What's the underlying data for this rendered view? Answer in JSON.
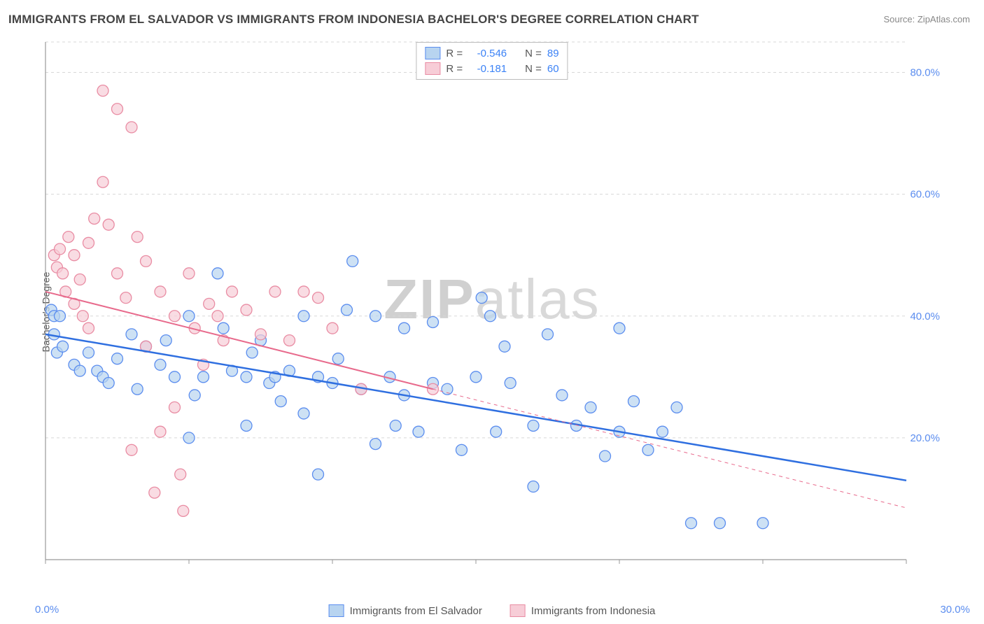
{
  "title": "IMMIGRANTS FROM EL SALVADOR VS IMMIGRANTS FROM INDONESIA BACHELOR'S DEGREE CORRELATION CHART",
  "source": "Source: ZipAtlas.com",
  "ylabel": "Bachelor's Degree",
  "watermark_a": "ZIP",
  "watermark_b": "atlas",
  "chart": {
    "type": "scatter",
    "xlim": [
      0,
      30
    ],
    "ylim": [
      0,
      85
    ],
    "xtick_labels": [
      "0.0%",
      "30.0%"
    ],
    "ytick_values": [
      20,
      40,
      60,
      80
    ],
    "ytick_labels": [
      "20.0%",
      "40.0%",
      "60.0%",
      "80.0%"
    ],
    "background": "#ffffff",
    "grid_color": "#d8d8d8",
    "plot_border_color": "#999999",
    "series": [
      {
        "name": "Immigrants from El Salvador",
        "color_fill": "#b8d4f0",
        "color_stroke": "#5b8def",
        "marker_radius": 8,
        "trend": {
          "x1": 0,
          "y1": 37,
          "x2": 30,
          "y2": 13,
          "solid_until_x": 30,
          "color": "#2f6fe0",
          "width": 2.5
        },
        "R": "-0.546",
        "N": "89",
        "points": [
          [
            0.2,
            41
          ],
          [
            0.3,
            40
          ],
          [
            0.5,
            40
          ],
          [
            0.3,
            37
          ],
          [
            0.4,
            34
          ],
          [
            0.6,
            35
          ],
          [
            1.0,
            32
          ],
          [
            1.2,
            31
          ],
          [
            1.5,
            34
          ],
          [
            1.8,
            31
          ],
          [
            2.0,
            30
          ],
          [
            2.2,
            29
          ],
          [
            2.5,
            33
          ],
          [
            3.0,
            37
          ],
          [
            3.2,
            28
          ],
          [
            3.5,
            35
          ],
          [
            4.0,
            32
          ],
          [
            4.2,
            36
          ],
          [
            4.5,
            30
          ],
          [
            5.0,
            40
          ],
          [
            5.0,
            20
          ],
          [
            5.2,
            27
          ],
          [
            5.5,
            30
          ],
          [
            6.0,
            47
          ],
          [
            6.2,
            38
          ],
          [
            6.5,
            31
          ],
          [
            7.0,
            30
          ],
          [
            7.0,
            22
          ],
          [
            7.2,
            34
          ],
          [
            7.5,
            36
          ],
          [
            7.8,
            29
          ],
          [
            8.0,
            30
          ],
          [
            8.2,
            26
          ],
          [
            8.5,
            31
          ],
          [
            9.0,
            40
          ],
          [
            9.0,
            24
          ],
          [
            9.5,
            30
          ],
          [
            9.5,
            14
          ],
          [
            10.0,
            29
          ],
          [
            10.2,
            33
          ],
          [
            10.5,
            41
          ],
          [
            10.7,
            49
          ],
          [
            11.0,
            28
          ],
          [
            11.5,
            19
          ],
          [
            11.5,
            40
          ],
          [
            12.0,
            30
          ],
          [
            12.2,
            22
          ],
          [
            12.5,
            27
          ],
          [
            12.5,
            38
          ],
          [
            13.0,
            21
          ],
          [
            13.5,
            29
          ],
          [
            13.5,
            39
          ],
          [
            14.0,
            28
          ],
          [
            14.5,
            18
          ],
          [
            15.0,
            30
          ],
          [
            15.2,
            43
          ],
          [
            15.5,
            40
          ],
          [
            15.7,
            21
          ],
          [
            16.0,
            35
          ],
          [
            16.2,
            29
          ],
          [
            17.0,
            22
          ],
          [
            17.0,
            12
          ],
          [
            17.5,
            37
          ],
          [
            18.0,
            27
          ],
          [
            18.5,
            22
          ],
          [
            19.0,
            25
          ],
          [
            19.5,
            17
          ],
          [
            20.0,
            38
          ],
          [
            20.0,
            21
          ],
          [
            20.5,
            26
          ],
          [
            21.0,
            18
          ],
          [
            21.5,
            21
          ],
          [
            22.0,
            25
          ],
          [
            22.5,
            6
          ],
          [
            23.5,
            6
          ],
          [
            25.0,
            6
          ]
        ]
      },
      {
        "name": "Immigrants from Indonesia",
        "color_fill": "#f7cdd7",
        "color_stroke": "#e98ca3",
        "marker_radius": 8,
        "trend": {
          "x1": 0,
          "y1": 44,
          "x2": 13.5,
          "y2": 28,
          "dash_to_x": 30,
          "dash_to_y": 8.5,
          "color": "#e86a8c",
          "width": 2
        },
        "R": "-0.181",
        "N": "60",
        "points": [
          [
            0.3,
            50
          ],
          [
            0.4,
            48
          ],
          [
            0.5,
            51
          ],
          [
            0.6,
            47
          ],
          [
            0.7,
            44
          ],
          [
            0.8,
            53
          ],
          [
            1.0,
            50
          ],
          [
            1.0,
            42
          ],
          [
            1.2,
            46
          ],
          [
            1.3,
            40
          ],
          [
            1.5,
            38
          ],
          [
            1.5,
            52
          ],
          [
            1.7,
            56
          ],
          [
            2.0,
            77
          ],
          [
            2.0,
            62
          ],
          [
            2.2,
            55
          ],
          [
            2.5,
            47
          ],
          [
            2.5,
            74
          ],
          [
            2.8,
            43
          ],
          [
            3.0,
            71
          ],
          [
            3.0,
            18
          ],
          [
            3.2,
            53
          ],
          [
            3.5,
            49
          ],
          [
            3.5,
            35
          ],
          [
            3.8,
            11
          ],
          [
            4.0,
            44
          ],
          [
            4.0,
            21
          ],
          [
            4.5,
            40
          ],
          [
            4.5,
            25
          ],
          [
            4.7,
            14
          ],
          [
            4.8,
            8
          ],
          [
            5.0,
            47
          ],
          [
            5.2,
            38
          ],
          [
            5.5,
            32
          ],
          [
            5.7,
            42
          ],
          [
            6.0,
            40
          ],
          [
            6.2,
            36
          ],
          [
            6.5,
            44
          ],
          [
            7.0,
            41
          ],
          [
            7.5,
            37
          ],
          [
            8.0,
            44
          ],
          [
            8.5,
            36
          ],
          [
            9.0,
            44
          ],
          [
            9.5,
            43
          ],
          [
            10.0,
            38
          ],
          [
            11.0,
            28
          ],
          [
            13.5,
            28
          ]
        ]
      }
    ]
  },
  "legend_top": {
    "row1": {
      "swatch_fill": "#b8d4f0",
      "swatch_border": "#5b8def",
      "R_label": "R =",
      "R": "-0.546",
      "N_label": "N =",
      "N": "89"
    },
    "row2": {
      "swatch_fill": "#f7cdd7",
      "swatch_border": "#e98ca3",
      "R_label": "R =",
      "R": "-0.181",
      "N_label": "N =",
      "N": "60"
    }
  },
  "bottom_legend": [
    {
      "swatch_fill": "#b8d4f0",
      "swatch_border": "#5b8def",
      "label": "Immigrants from El Salvador"
    },
    {
      "swatch_fill": "#f7cdd7",
      "swatch_border": "#e98ca3",
      "label": "Immigrants from Indonesia"
    }
  ]
}
